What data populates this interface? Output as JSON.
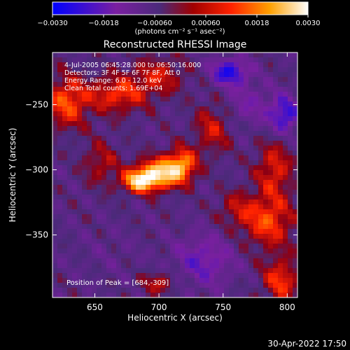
{
  "chart_data": {
    "type": "heatmap",
    "title": "Reconstructed RHESSI Image",
    "xlabel": "Heliocentric X (arcsec)",
    "ylabel": "Heliocentric Y (arcsec)",
    "xlim": [
      617,
      808
    ],
    "ylim": [
      -398,
      -210
    ],
    "x_ticks": [
      650,
      700,
      750,
      800
    ],
    "x_tick_labels": [
      "650",
      "700",
      "750",
      "800"
    ],
    "y_ticks": [
      -250,
      -300,
      -350
    ],
    "y_tick_labels": [
      "−250",
      "−300",
      "−350"
    ],
    "colorbar": {
      "range": [
        -0.003,
        0.003
      ],
      "ticks": [
        -0.003,
        -0.0018,
        -0.0006,
        0.0006,
        0.0018,
        0.003
      ],
      "tick_labels": [
        "−0.0030",
        "−0.0018",
        "−0.00060",
        "0.00060",
        "0.0018",
        "0.0030"
      ],
      "unit_label": "(photons cm⁻² s⁻¹ asec⁻²)",
      "colors": [
        "#0000ff",
        "#7a1fa0",
        "#4b2a7a",
        "#ff2200",
        "#ffa000",
        "#ffffff"
      ]
    },
    "annotations": [
      "4-Jul-2005 06:45:28.000 to 06:50:16.000",
      "Detectors: 3F 4F 5F 6F 7F 8F, Att 0",
      "Energy Range: 6.0 - 12.0 keV",
      "Clean    Total counts: 1.69E+04"
    ],
    "peak_label": "Position of Peak = [684,-309]",
    "peak": {
      "x": 684,
      "y": -309,
      "value": 0.003
    },
    "sources": [
      {
        "x": 700,
        "y": -303,
        "value": 0.003,
        "sx": 12,
        "sy": 8
      },
      {
        "x": 684,
        "y": -309,
        "value": 0.0026,
        "sx": 9,
        "sy": 6
      },
      {
        "x": 718,
        "y": -296,
        "value": 0.0022,
        "sx": 8,
        "sy": 9
      },
      {
        "x": 628,
        "y": -248,
        "value": 0.0018,
        "sx": 12,
        "sy": 14
      },
      {
        "x": 668,
        "y": -242,
        "value": 0.0016,
        "sx": 16,
        "sy": 10
      },
      {
        "x": 700,
        "y": -228,
        "value": 0.0012,
        "sx": 14,
        "sy": 10
      },
      {
        "x": 742,
        "y": -268,
        "value": 0.0012,
        "sx": 10,
        "sy": 14
      },
      {
        "x": 655,
        "y": -295,
        "value": 0.001,
        "sx": 10,
        "sy": 12
      },
      {
        "x": 790,
        "y": -300,
        "value": 0.0014,
        "sx": 10,
        "sy": 16
      },
      {
        "x": 785,
        "y": -340,
        "value": 0.0017,
        "sx": 14,
        "sy": 14
      },
      {
        "x": 795,
        "y": -385,
        "value": 0.0016,
        "sx": 10,
        "sy": 12
      },
      {
        "x": 760,
        "y": -330,
        "value": 0.0009,
        "sx": 10,
        "sy": 10
      },
      {
        "x": 700,
        "y": -387,
        "value": 0.0011,
        "sx": 10,
        "sy": 6
      },
      {
        "x": 660,
        "y": -365,
        "value": -0.0002,
        "sx": 20,
        "sy": 14
      },
      {
        "x": 755,
        "y": -225,
        "value": -0.002,
        "sx": 10,
        "sy": 7
      },
      {
        "x": 798,
        "y": -258,
        "value": -0.0018,
        "sx": 8,
        "sy": 10
      },
      {
        "x": 735,
        "y": -370,
        "value": -0.0012,
        "sx": 16,
        "sy": 14
      },
      {
        "x": 770,
        "y": -250,
        "value": -0.0008,
        "sx": 14,
        "sy": 12
      }
    ]
  }
}
